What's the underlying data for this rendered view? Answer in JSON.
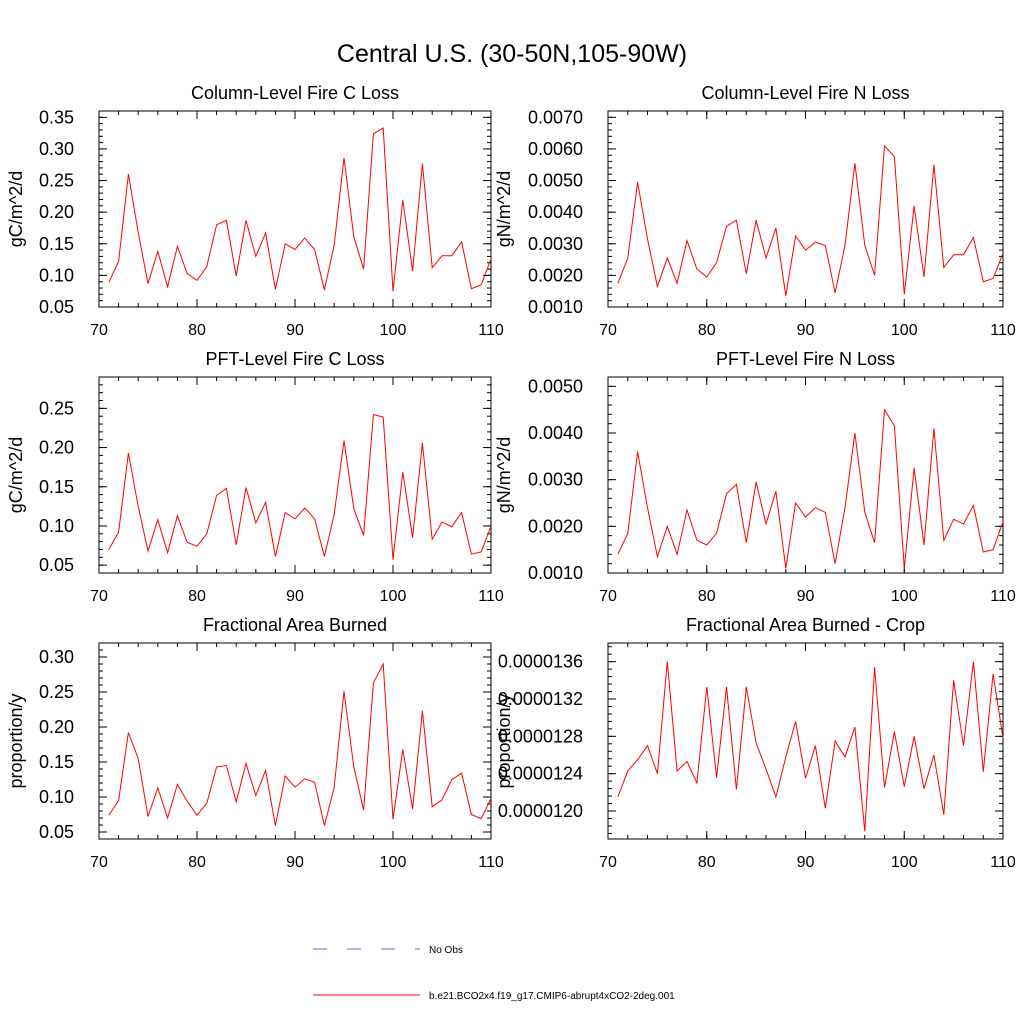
{
  "page": {
    "title": "Central U.S. (30-50N,105-90W)"
  },
  "colors": {
    "model_line": "#ff0000",
    "obs_line": "#6a6ad8",
    "axis": "#000000"
  },
  "legend": {
    "entries": [
      {
        "label": "No Obs",
        "style": "dashed",
        "color": "#6a6ad8"
      },
      {
        "label": "b.e21.BCO2x4.f19_g17.CMIP6-abrupt4xCO2-2deg.001",
        "style": "solid",
        "color": "#ff0000"
      }
    ]
  },
  "chart_data": [
    {
      "type": "line",
      "title": "Column-Level Fire C Loss",
      "xlabel": "",
      "ylabel": "gC/m^2/d",
      "xlim": [
        70,
        110
      ],
      "ylim": [
        0.05,
        0.36
      ],
      "xticks": [
        70,
        80,
        90,
        100,
        110
      ],
      "xtick_labels": [
        "70",
        "80",
        "90",
        "100",
        "110"
      ],
      "yticks": [
        0.05,
        0.1,
        0.15,
        0.2,
        0.25,
        0.3,
        0.35
      ],
      "ytick_labels": [
        "0.05",
        "0.10",
        "0.15",
        "0.20",
        "0.25",
        "0.30",
        "0.35"
      ],
      "x": [
        71,
        72,
        73,
        74,
        75,
        76,
        77,
        78,
        79,
        80,
        81,
        82,
        83,
        84,
        85,
        86,
        87,
        88,
        89,
        90,
        91,
        92,
        93,
        94,
        95,
        96,
        97,
        98,
        99,
        100,
        101,
        102,
        103,
        104,
        105,
        106,
        107,
        108,
        109,
        110
      ],
      "series": [
        {
          "name": "b.e21.BCO2x4.f19_g17.CMIP6-abrupt4xCO2-2deg.001",
          "values": [
            0.089,
            0.122,
            0.26,
            0.168,
            0.087,
            0.138,
            0.082,
            0.146,
            0.103,
            0.092,
            0.114,
            0.18,
            0.187,
            0.099,
            0.187,
            0.13,
            0.167,
            0.078,
            0.15,
            0.141,
            0.159,
            0.141,
            0.077,
            0.148,
            0.286,
            0.161,
            0.11,
            0.324,
            0.333,
            0.075,
            0.219,
            0.107,
            0.277,
            0.112,
            0.131,
            0.131,
            0.153,
            0.079,
            0.085,
            0.126
          ]
        }
      ]
    },
    {
      "type": "line",
      "title": "Column-Level Fire N Loss",
      "xlabel": "",
      "ylabel": "gN/m^2/d",
      "xlim": [
        70,
        110
      ],
      "ylim": [
        0.001,
        0.0072
      ],
      "xticks": [
        70,
        80,
        90,
        100,
        110
      ],
      "xtick_labels": [
        "70",
        "80",
        "90",
        "100",
        "110"
      ],
      "yticks": [
        0.001,
        0.002,
        0.003,
        0.004,
        0.005,
        0.006,
        0.007
      ],
      "ytick_labels": [
        "0.0010",
        "0.0020",
        "0.0030",
        "0.0040",
        "0.0050",
        "0.0060",
        "0.0070"
      ],
      "x": [
        71,
        72,
        73,
        74,
        75,
        76,
        77,
        78,
        79,
        80,
        81,
        82,
        83,
        84,
        85,
        86,
        87,
        88,
        89,
        90,
        91,
        92,
        93,
        94,
        95,
        96,
        97,
        98,
        99,
        100,
        101,
        102,
        103,
        104,
        105,
        106,
        107,
        108,
        109,
        110
      ],
      "series": [
        {
          "name": "b.e21.BCO2x4.f19_g17.CMIP6-abrupt4xCO2-2deg.001",
          "values": [
            0.00175,
            0.00255,
            0.00495,
            0.00315,
            0.00165,
            0.00255,
            0.00175,
            0.0031,
            0.0022,
            0.00195,
            0.0024,
            0.00355,
            0.00375,
            0.00205,
            0.00375,
            0.00255,
            0.0035,
            0.00135,
            0.00325,
            0.0028,
            0.00305,
            0.00295,
            0.00145,
            0.00295,
            0.00555,
            0.00295,
            0.002,
            0.0061,
            0.00575,
            0.0014,
            0.0042,
            0.00195,
            0.0055,
            0.00225,
            0.00265,
            0.00265,
            0.0032,
            0.0018,
            0.0019,
            0.0027
          ]
        }
      ]
    },
    {
      "type": "line",
      "title": "PFT-Level Fire C Loss",
      "xlabel": "",
      "ylabel": "gC/m^2/d",
      "xlim": [
        70,
        110
      ],
      "ylim": [
        0.04,
        0.29
      ],
      "xticks": [
        70,
        80,
        90,
        100,
        110
      ],
      "xtick_labels": [
        "70",
        "80",
        "90",
        "100",
        "110"
      ],
      "yticks": [
        0.05,
        0.1,
        0.15,
        0.2,
        0.25
      ],
      "ytick_labels": [
        "0.05",
        "0.10",
        "0.15",
        "0.20",
        "0.25"
      ],
      "x": [
        71,
        72,
        73,
        74,
        75,
        76,
        77,
        78,
        79,
        80,
        81,
        82,
        83,
        84,
        85,
        86,
        87,
        88,
        89,
        90,
        91,
        92,
        93,
        94,
        95,
        96,
        97,
        98,
        99,
        100,
        101,
        102,
        103,
        104,
        105,
        106,
        107,
        108,
        109,
        110
      ],
      "series": [
        {
          "name": "b.e21.BCO2x4.f19_g17.CMIP6-abrupt4xCO2-2deg.001",
          "values": [
            0.07,
            0.092,
            0.193,
            0.125,
            0.068,
            0.108,
            0.066,
            0.113,
            0.079,
            0.074,
            0.09,
            0.139,
            0.148,
            0.076,
            0.149,
            0.104,
            0.13,
            0.061,
            0.117,
            0.109,
            0.123,
            0.109,
            0.061,
            0.115,
            0.209,
            0.122,
            0.088,
            0.242,
            0.239,
            0.057,
            0.169,
            0.085,
            0.206,
            0.083,
            0.105,
            0.099,
            0.117,
            0.064,
            0.067,
            0.1
          ]
        }
      ]
    },
    {
      "type": "line",
      "title": "PFT-Level Fire N Loss",
      "xlabel": "",
      "ylabel": "gN/m^2/d",
      "xlim": [
        70,
        110
      ],
      "ylim": [
        0.001,
        0.0052
      ],
      "xticks": [
        70,
        80,
        90,
        100,
        110
      ],
      "xtick_labels": [
        "70",
        "80",
        "90",
        "100",
        "110"
      ],
      "yticks": [
        0.001,
        0.002,
        0.003,
        0.004,
        0.005
      ],
      "ytick_labels": [
        "0.0010",
        "0.0020",
        "0.0030",
        "0.0040",
        "0.0050"
      ],
      "x": [
        71,
        72,
        73,
        74,
        75,
        76,
        77,
        78,
        79,
        80,
        81,
        82,
        83,
        84,
        85,
        86,
        87,
        88,
        89,
        90,
        91,
        92,
        93,
        94,
        95,
        96,
        97,
        98,
        99,
        100,
        101,
        102,
        103,
        104,
        105,
        106,
        107,
        108,
        109,
        110
      ],
      "series": [
        {
          "name": "b.e21.BCO2x4.f19_g17.CMIP6-abrupt4xCO2-2deg.001",
          "values": [
            0.0014,
            0.00185,
            0.0036,
            0.0024,
            0.00135,
            0.002,
            0.0014,
            0.00235,
            0.0017,
            0.0016,
            0.00185,
            0.0027,
            0.0029,
            0.00165,
            0.00295,
            0.00205,
            0.00275,
            0.0011,
            0.0025,
            0.0022,
            0.0024,
            0.0023,
            0.0012,
            0.0024,
            0.004,
            0.0023,
            0.00165,
            0.0045,
            0.00415,
            0.0011,
            0.00325,
            0.0016,
            0.0041,
            0.0017,
            0.00215,
            0.00205,
            0.00245,
            0.00145,
            0.0015,
            0.0021
          ]
        }
      ]
    },
    {
      "type": "line",
      "title": "Fractional Area Burned",
      "xlabel": "",
      "ylabel": "proportion/y",
      "xlim": [
        70,
        110
      ],
      "ylim": [
        0.04,
        0.32
      ],
      "xticks": [
        70,
        80,
        90,
        100,
        110
      ],
      "xtick_labels": [
        "70",
        "80",
        "90",
        "100",
        "110"
      ],
      "yticks": [
        0.05,
        0.1,
        0.15,
        0.2,
        0.25,
        0.3
      ],
      "ytick_labels": [
        "0.05",
        "0.10",
        "0.15",
        "0.20",
        "0.25",
        "0.30"
      ],
      "x": [
        71,
        72,
        73,
        74,
        75,
        76,
        77,
        78,
        79,
        80,
        81,
        82,
        83,
        84,
        85,
        86,
        87,
        88,
        89,
        90,
        91,
        92,
        93,
        94,
        95,
        96,
        97,
        98,
        99,
        100,
        101,
        102,
        103,
        104,
        105,
        106,
        107,
        108,
        109,
        110
      ],
      "series": [
        {
          "name": "b.e21.BCO2x4.f19_g17.CMIP6-abrupt4xCO2-2deg.001",
          "values": [
            0.074,
            0.095,
            0.192,
            0.155,
            0.072,
            0.113,
            0.07,
            0.118,
            0.094,
            0.074,
            0.091,
            0.143,
            0.145,
            0.093,
            0.148,
            0.102,
            0.138,
            0.059,
            0.13,
            0.114,
            0.126,
            0.121,
            0.059,
            0.114,
            0.251,
            0.143,
            0.081,
            0.263,
            0.29,
            0.068,
            0.168,
            0.083,
            0.223,
            0.086,
            0.096,
            0.125,
            0.134,
            0.075,
            0.069,
            0.098
          ]
        }
      ]
    },
    {
      "type": "line",
      "title": "Fractional Area Burned - Crop",
      "xlabel": "",
      "ylabel": "proportion/y",
      "xlim": [
        70,
        110
      ],
      "ylim": [
        1.17e-05,
        1.38e-05
      ],
      "xticks": [
        70,
        80,
        90,
        100,
        110
      ],
      "xtick_labels": [
        "70",
        "80",
        "90",
        "100",
        "110"
      ],
      "yticks": [
        1.2e-05,
        1.24e-05,
        1.28e-05,
        1.32e-05,
        1.36e-05
      ],
      "ytick_labels": [
        "0.0000120",
        "0.0000124",
        "0.0000128",
        "0.0000132",
        "0.0000136"
      ],
      "x": [
        71,
        72,
        73,
        74,
        75,
        76,
        77,
        78,
        79,
        80,
        81,
        82,
        83,
        84,
        85,
        86,
        87,
        88,
        89,
        90,
        91,
        92,
        93,
        94,
        95,
        96,
        97,
        98,
        99,
        100,
        101,
        102,
        103,
        104,
        105,
        106,
        107,
        108,
        109,
        110
      ],
      "series": [
        {
          "name": "b.e21.BCO2x4.f19_g17.CMIP6-abrupt4xCO2-2deg.001",
          "values": [
            1.215e-05,
            1.243e-05,
            1.255e-05,
            1.27e-05,
            1.24e-05,
            1.36e-05,
            1.243e-05,
            1.253e-05,
            1.23e-05,
            1.333e-05,
            1.236e-05,
            1.333e-05,
            1.223e-05,
            1.333e-05,
            1.273e-05,
            1.245e-05,
            1.215e-05,
            1.258e-05,
            1.296e-05,
            1.235e-05,
            1.27e-05,
            1.203e-05,
            1.275e-05,
            1.258e-05,
            1.29e-05,
            1.178e-05,
            1.354e-05,
            1.225e-05,
            1.285e-05,
            1.226e-05,
            1.28e-05,
            1.224e-05,
            1.26e-05,
            1.196e-05,
            1.34e-05,
            1.27e-05,
            1.36e-05,
            1.242e-05,
            1.347e-05,
            1.278e-05
          ]
        }
      ]
    }
  ]
}
